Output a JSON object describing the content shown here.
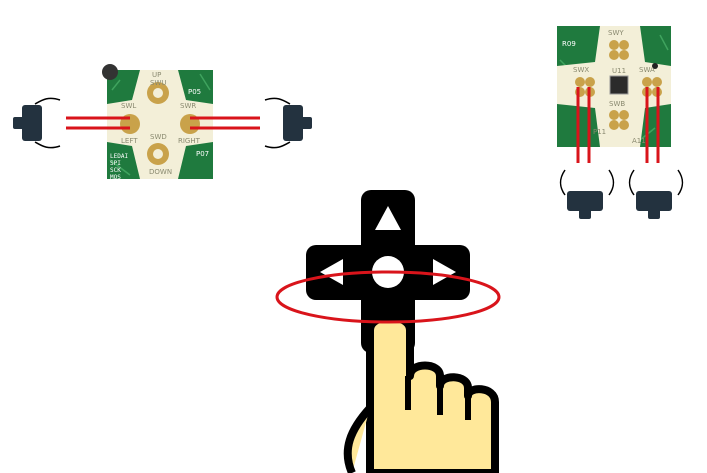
{
  "colors": {
    "background": "#ffffff",
    "pcb_green": "#1f7a3e",
    "pad_cream": "#f3efd8",
    "contact_gold": "#c9a24a",
    "wire_red": "#d9141b",
    "switch_dark": "#23323f",
    "dpad_black": "#000000",
    "finger_fill": "#ffe89a"
  },
  "left_board": {
    "labels": {
      "up": "UP",
      "swu": "SWU",
      "swl": "SWL",
      "swr": "SWR",
      "swd": "SWD",
      "left": "LEFT",
      "right": "RIGHT",
      "down": "DOWN",
      "p05": "P05",
      "p07": "P07",
      "ledai": "LEDAI",
      "spi": "SPI",
      "sck": "SCK",
      "mos": "MOS"
    }
  },
  "right_board": {
    "labels": {
      "r09": "R09",
      "swy": "SWY",
      "swx": "SWX",
      "swa": "SWA",
      "swb": "SWB",
      "u11": "U11",
      "p11": "P11",
      "a11": "A11"
    }
  },
  "icons": {
    "switches": "tactile-switch-icon",
    "dpad": "dpad-icon",
    "finger": "pointing-finger-icon",
    "ring": "rotation-ring-icon"
  }
}
